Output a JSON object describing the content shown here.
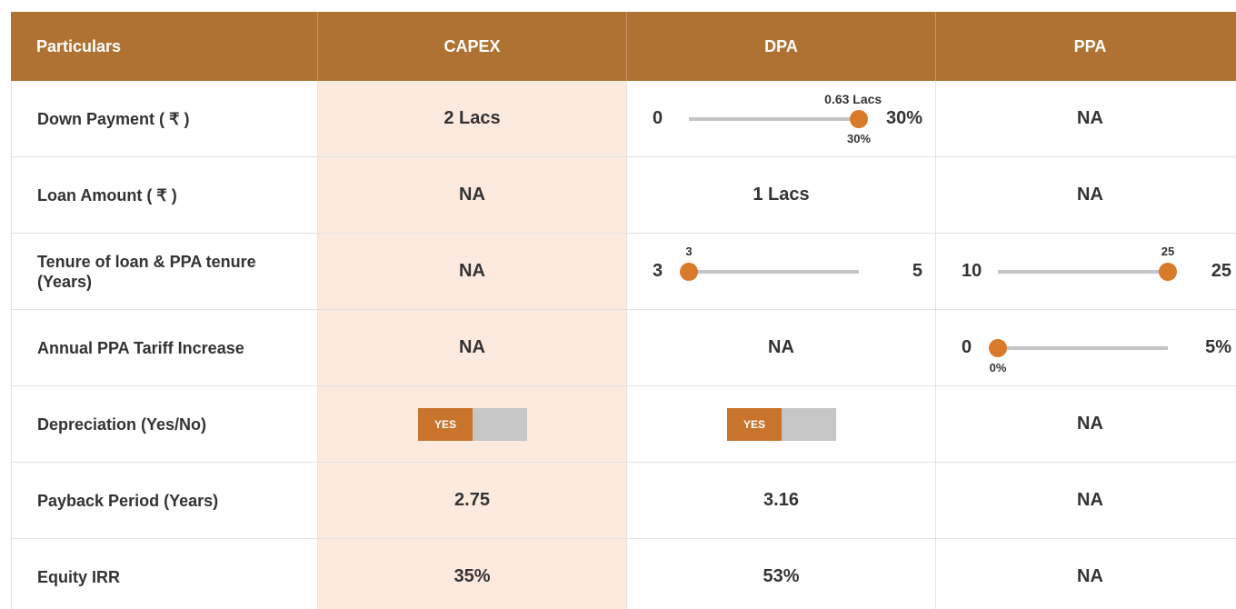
{
  "table": {
    "header": [
      "Particulars",
      "CAPEX",
      "DPA",
      "PPA"
    ],
    "rows": [
      {
        "label": "Down Payment ( ₹ )",
        "cells": [
          "2 Lacs",
          {
            "slider": {
              "min": 0,
              "max": {
                "value": 30,
                "label": "30%"
              },
              "value": {
                "value": 30,
                "label": "30%"
              },
              "caption": "0.63 Lacs"
            }
          },
          "NA"
        ]
      },
      {
        "label": "Loan Amount ( ₹ )",
        "cells": [
          "NA",
          "1 Lacs",
          "NA"
        ]
      },
      {
        "label": "Tenure of loan & PPA tenure (Years)",
        "cells": [
          "NA",
          {
            "slider": {
              "min": 3,
              "max": 5,
              "value": 3
            }
          },
          {
            "slider": {
              "min": 10,
              "max": 25,
              "value": 25
            }
          }
        ]
      },
      {
        "label": "Annual PPA Tariff Increase",
        "cells": [
          "NA",
          "NA",
          {
            "slider": {
              "min": 0,
              "max": {
                "value": 5,
                "label": "5%"
              },
              "value": {
                "value": 0,
                "label": "0%"
              }
            }
          }
        ]
      },
      {
        "label": "Depreciation (Yes/No)",
        "cells": [
          {
            "toggle": "YES"
          },
          {
            "toggle": "YES"
          },
          "NA"
        ]
      },
      {
        "label": "Payback Period (Years)",
        "cells": [
          "2.75",
          "3.16",
          "NA"
        ]
      },
      {
        "label": "Equity IRR",
        "cells": [
          "35%",
          "53%",
          "NA"
        ]
      }
    ]
  }
}
